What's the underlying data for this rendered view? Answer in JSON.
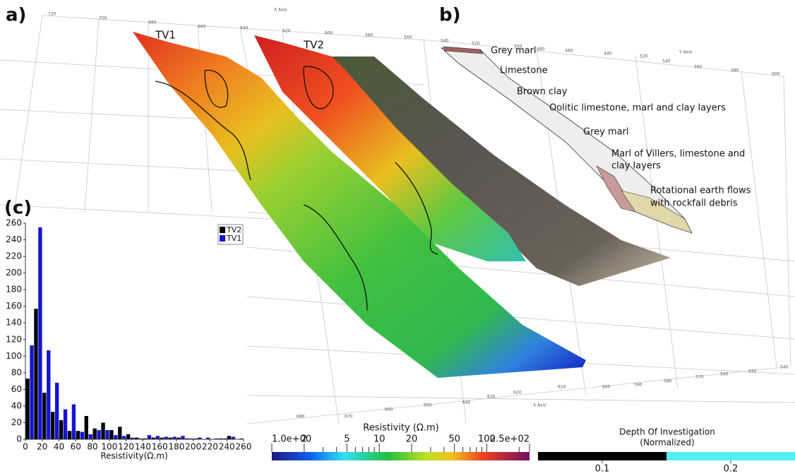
{
  "panel_labels": {
    "a": "a)",
    "b": "b)",
    "c": "(c)"
  },
  "profiles": [
    "TV1",
    "TV2"
  ],
  "axis_titles": {
    "top_x": "X Axis",
    "bottom_x": "X Axis",
    "right_y": "Y Axis"
  },
  "axis_tick_labels": {
    "top_x": [
      720,
      700,
      680,
      660,
      640,
      620,
      600,
      580,
      560
    ],
    "upper_right_x": [
      540,
      520,
      500,
      480,
      460,
      440
    ],
    "right_y": [
      520,
      540,
      560,
      580,
      600
    ],
    "bottom_x": [
      680,
      670,
      660,
      650,
      640,
      630,
      620,
      610,
      600,
      590,
      580,
      570,
      560,
      550,
      540
    ]
  },
  "geology_labels": [
    "Grey marl",
    "Limestone",
    "Brown clay",
    "Oolitic limestone, marl and clay layers",
    "Grey marl",
    "Marl of Villers, limestone and",
    "clay layers",
    "Rotational earth flows",
    "with rockfall debris"
  ],
  "resistivity_colorbar": {
    "title": "Resistivity (Ω.m)",
    "log": true,
    "lim": [
      1,
      250
    ],
    "ticks": [
      {
        "value": 1,
        "label": "1.0e+00"
      },
      2,
      5,
      10,
      20,
      50,
      100,
      {
        "value": 250,
        "label": "2.5e+02"
      }
    ],
    "minor_ticks": [
      3,
      4,
      6,
      7,
      8,
      9,
      30,
      40,
      60,
      70,
      80,
      90,
      200
    ]
  },
  "doi_colorbar": {
    "title": [
      "Depth Of Investigation",
      "(Normalized)"
    ],
    "lim": [
      0.05,
      0.25
    ],
    "segments": [
      {
        "from": 0.05,
        "to": 0.15,
        "color": "#000000"
      },
      {
        "from": 0.15,
        "to": 0.25,
        "color": "#55eeee"
      }
    ],
    "ticks": [
      0.1,
      0.2
    ]
  },
  "chart_data": {
    "type": "histogram",
    "xlabel": "Resistivity(Ω.m)",
    "bins": [
      0,
      10,
      20,
      30,
      40,
      50,
      60,
      70,
      80,
      90,
      100,
      110,
      120,
      130,
      140,
      150,
      160,
      170,
      180,
      190,
      200,
      210,
      220,
      230,
      240,
      250,
      260
    ],
    "series": [
      {
        "name": "TV2",
        "color": "#000000",
        "values": [
          73,
          157,
          56,
          33,
          23,
          10,
          10,
          28,
          13,
          20,
          11,
          15,
          6,
          2,
          1,
          2,
          2,
          2,
          2,
          1,
          1,
          0,
          0,
          1,
          4,
          0
        ]
      },
      {
        "name": "TV1",
        "color": "#1414d2",
        "values": [
          113,
          255,
          107,
          68,
          36,
          42,
          9,
          6,
          11,
          11,
          5,
          4,
          2,
          1,
          5,
          4,
          3,
          3,
          4,
          1,
          2,
          2,
          1,
          1,
          3,
          1
        ]
      }
    ],
    "xlim": [
      0,
      260
    ],
    "ylim": [
      0,
      260
    ],
    "xticks": [
      0,
      20,
      40,
      60,
      80,
      100,
      120,
      140,
      160,
      180,
      200,
      220,
      240,
      260
    ],
    "yticks": [
      0,
      20,
      40,
      60,
      80,
      100,
      120,
      140,
      160,
      180,
      200,
      220,
      240,
      260
    ],
    "legend": "upper right"
  }
}
